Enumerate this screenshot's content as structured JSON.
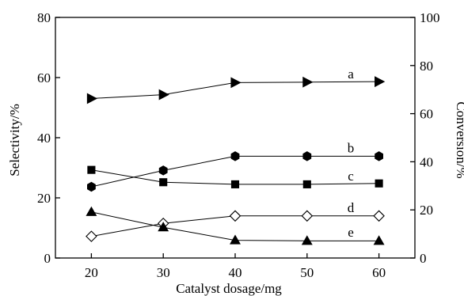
{
  "chart_data": {
    "type": "line",
    "xlabel": "Catalyst dosage/mg",
    "ylabel": "Selectivity/%",
    "y2label": "Conversion/%",
    "xlim": [
      15,
      65
    ],
    "ylim": [
      0,
      80
    ],
    "y2lim": [
      0,
      100
    ],
    "x_ticks": [
      20,
      30,
      40,
      50,
      60
    ],
    "y_ticks": [
      0,
      20,
      40,
      60,
      80
    ],
    "y2_ticks": [
      0,
      20,
      40,
      60,
      80,
      100
    ],
    "x": [
      20,
      30,
      40,
      50,
      60
    ],
    "grid": false,
    "series": [
      {
        "name": "a",
        "axis": "right",
        "marker": "triangle-right",
        "fill": "#000000",
        "values": [
          66.3,
          67.9,
          72.9,
          73.1,
          73.3
        ]
      },
      {
        "name": "b",
        "axis": "right",
        "marker": "hexagon",
        "fill": "#000000",
        "values": [
          29.6,
          36.4,
          42.3,
          42.3,
          42.3
        ]
      },
      {
        "name": "c",
        "axis": "left",
        "marker": "square",
        "fill": "#000000",
        "values": [
          29.3,
          25.2,
          24.5,
          24.5,
          24.8
        ]
      },
      {
        "name": "d",
        "axis": "right",
        "marker": "diamond",
        "fill": "#ffffff",
        "values": [
          9.0,
          14.4,
          17.5,
          17.5,
          17.5
        ]
      },
      {
        "name": "e",
        "axis": "left",
        "marker": "triangle-up",
        "fill": "#000000",
        "values": [
          15.3,
          10.2,
          5.9,
          5.7,
          5.7
        ]
      }
    ]
  }
}
